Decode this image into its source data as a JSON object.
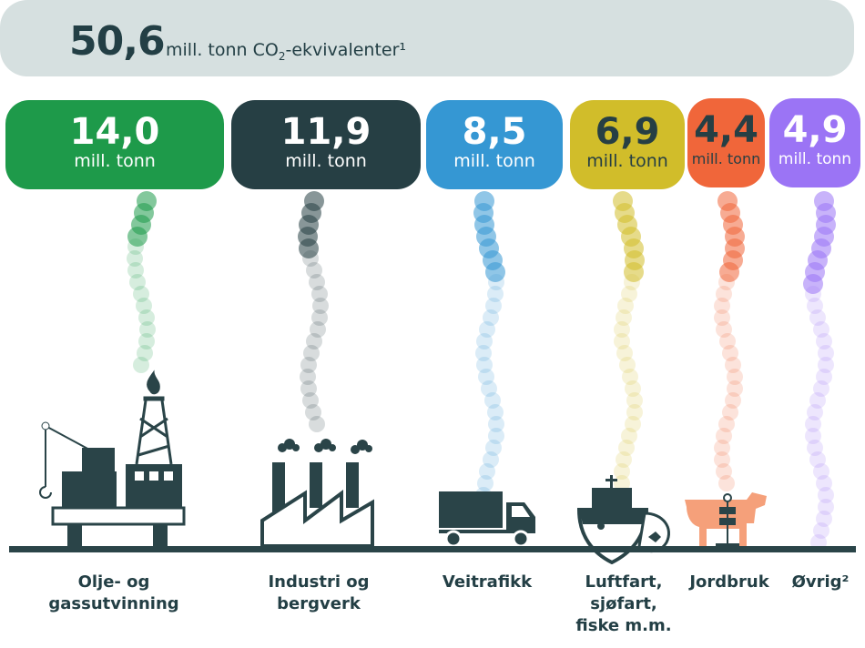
{
  "total": {
    "value": "50,6",
    "unit_pre": "mill. tonn CO",
    "unit_sub": "2",
    "unit_post": "-ekvivalenter¹"
  },
  "sectors": [
    {
      "value": "14,0",
      "unit": "mill. tonn",
      "label_lines": [
        "Olje- og",
        "gassutvinning"
      ],
      "color": "#1e9a4a",
      "text_color": "#ffffff",
      "icon": "oil-platform-icon"
    },
    {
      "value": "11,9",
      "unit": "mill. tonn",
      "label_lines": [
        "Industri og",
        "bergverk"
      ],
      "color": "#263f44",
      "text_color": "#ffffff",
      "icon": "factory-icon"
    },
    {
      "value": "8,5",
      "unit": "mill. tonn",
      "label_lines": [
        "Veitrafikk"
      ],
      "color": "#3597d3",
      "text_color": "#ffffff",
      "icon": "truck-icon"
    },
    {
      "value": "6,9",
      "unit": "mill. tonn",
      "label_lines": [
        "Luftfart,",
        "sjøfart,",
        "fiske m.m."
      ],
      "color": "#d1bd2a",
      "text_color": "#263f44",
      "icon": "ship-icon"
    },
    {
      "value": "4,4",
      "unit": "mill. tonn",
      "label_lines": [
        "Jordbruk"
      ],
      "color": "#f0663a",
      "text_color": "#263f44",
      "icon": "cow-icon"
    },
    {
      "value": "4,9",
      "unit": "mill. tonn",
      "label_lines": [
        "Øvrig²"
      ],
      "color": "#9b74f5",
      "text_color": "#ffffff",
      "icon": "none"
    }
  ]
}
